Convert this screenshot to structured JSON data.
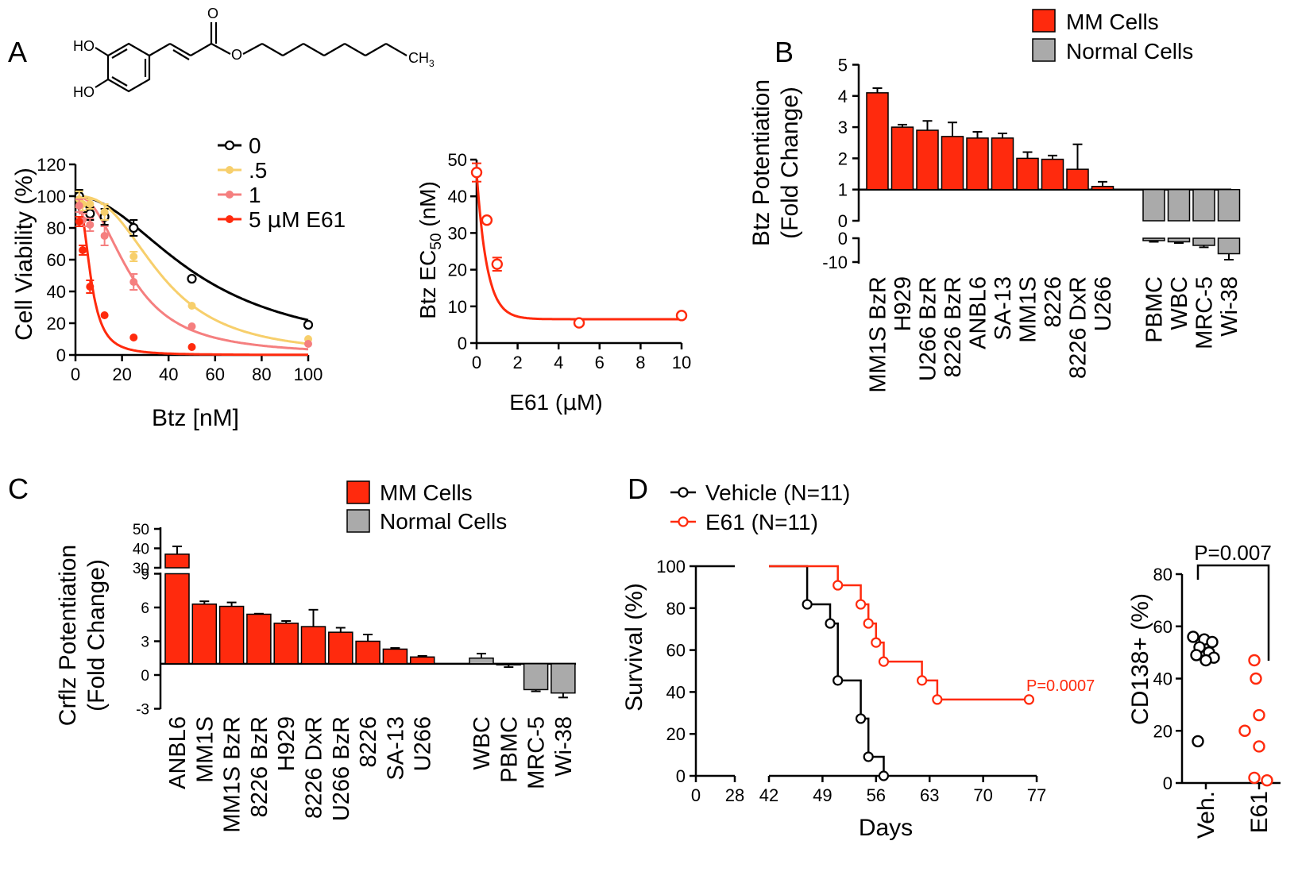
{
  "panel_letters": {
    "a": "A",
    "b": "B",
    "c": "C",
    "d": "D"
  },
  "colors": {
    "mm": "#ff2a0d",
    "normal": "#aaaaaa",
    "black": "#000000",
    "e0": "#000000",
    "e05": "#f7cf6c",
    "e1": "#f57f7f",
    "e5": "#ff2a0d"
  },
  "molecule": {
    "ho_top": "HO",
    "ho_bottom": "HO",
    "o_carbonyl": "O",
    "o_ester": "O",
    "ch3": "CH",
    "ch3_sub": "3"
  },
  "chart_data": [
    {
      "id": "A1",
      "type": "line",
      "xlabel": "Btz [nM]",
      "ylabel": "Cell Viability (%)",
      "xlim": [
        0,
        100
      ],
      "ylim": [
        0,
        120
      ],
      "xticks": [
        0,
        20,
        40,
        60,
        80,
        100
      ],
      "yticks": [
        0,
        20,
        40,
        60,
        80,
        100,
        120
      ],
      "legend_position": "top-right",
      "series": [
        {
          "name": "0",
          "label": "0",
          "color": "#000000",
          "marker": "open-circle",
          "ec50": 53,
          "hill": 2.0,
          "x": [
            1.6,
            3.1,
            6.25,
            12.5,
            25,
            50,
            100
          ],
          "y": [
            100,
            92,
            89,
            87,
            80,
            48,
            19
          ],
          "err": [
            4,
            3,
            4,
            5,
            5,
            0,
            0
          ]
        },
        {
          "name": ".5",
          "label": ".5",
          "color": "#f7cf6c",
          "marker": "filled-circle",
          "ec50": 37,
          "hill": 2.6,
          "x": [
            1.6,
            3.1,
            6.25,
            12.5,
            25,
            50,
            100
          ],
          "y": [
            98,
            95,
            95,
            90,
            62,
            31,
            10
          ],
          "err": [
            5,
            4,
            3,
            5,
            3,
            0,
            0
          ]
        },
        {
          "name": "1",
          "label": "1",
          "color": "#f57f7f",
          "marker": "filled-circle",
          "ec50": 24,
          "hill": 2.3,
          "x": [
            1.6,
            3.1,
            6.25,
            12.5,
            25,
            50,
            100
          ],
          "y": [
            94,
            85,
            82,
            75,
            46,
            18,
            7
          ],
          "err": [
            4,
            4,
            4,
            6,
            5,
            0,
            0
          ]
        },
        {
          "name": "5 µM E61",
          "label_prefix": "5 ",
          "label_mu": "µ",
          "label_suffix": "M E61",
          "color": "#ff2a0d",
          "marker": "filled-circle",
          "ec50": 6.5,
          "hill": 2.6,
          "x": [
            1.6,
            3.1,
            6.25,
            12.5,
            25,
            50
          ],
          "y": [
            84,
            66,
            43,
            25,
            11,
            5
          ],
          "err": [
            3,
            3,
            4,
            0,
            0,
            0
          ]
        }
      ]
    },
    {
      "id": "A2",
      "type": "line",
      "xlabel_prefix": "E61 (",
      "xlabel_mu": "µ",
      "xlabel_suffix": "M)",
      "ylabel_prefix": "Btz EC",
      "ylabel_sub": "50",
      "ylabel_suffix": " (nM)",
      "xlim": [
        0,
        10
      ],
      "ylim": [
        0,
        50
      ],
      "xticks": [
        0,
        2,
        4,
        6,
        8,
        10
      ],
      "yticks": [
        0,
        10,
        20,
        30,
        40,
        50
      ],
      "series": [
        {
          "name": "Btz EC50",
          "color": "#ff2a0d",
          "marker": "open-circle",
          "x": [
            0,
            0.5,
            1,
            5,
            10
          ],
          "y": [
            46.5,
            33.5,
            21.5,
            5.5,
            7.5
          ],
          "err": [
            2.5,
            0,
            1.8,
            0,
            0
          ],
          "fit": {
            "bottom": 6.5,
            "top": 46.5,
            "k": 2.0
          }
        }
      ]
    },
    {
      "id": "B",
      "type": "bar",
      "ylabel_line1": "Btz Potentiation",
      "ylabel_line2": "(Fold Change)",
      "baseline": 1,
      "yticks_top": [
        "5",
        "4",
        "3",
        "2",
        "1",
        "0"
      ],
      "yticks_bottom": [
        "0",
        "-10"
      ],
      "legend": [
        {
          "label": "MM Cells",
          "color": "#ff2a0d"
        },
        {
          "label": "Normal Cells",
          "color": "#aaaaaa"
        }
      ],
      "categories": [
        "MM1S BzR",
        "H929",
        "U266 BzR",
        "8226 BzR",
        "ANBL6",
        "SA-13",
        "MM1S",
        "8226",
        "8226 DxR",
        "U266",
        "PBMC",
        "WBC",
        "MRC-5",
        "Wi-38"
      ],
      "groups": [
        "MM",
        "MM",
        "MM",
        "MM",
        "MM",
        "MM",
        "MM",
        "MM",
        "MM",
        "MM",
        "Normal",
        "Normal",
        "Normal",
        "Normal"
      ],
      "values": [
        4.1,
        3.0,
        2.9,
        2.7,
        2.65,
        2.65,
        2.0,
        1.97,
        1.65,
        1.1,
        -1.0,
        -1.5,
        -3.0,
        -6.5
      ],
      "errors": [
        0.15,
        0.08,
        0.3,
        0.45,
        0.2,
        0.15,
        0.2,
        0.12,
        0.8,
        0.15,
        0.5,
        0.5,
        0.8,
        2.5
      ]
    },
    {
      "id": "C",
      "type": "bar",
      "ylabel_line1": "Crflz Potentiation",
      "ylabel_line2": "(Fold Change)",
      "baseline": 1,
      "yticks_top": [
        "50",
        "40",
        "30"
      ],
      "yticks_bottom": [
        "9",
        "6",
        "3",
        "0",
        "-3"
      ],
      "legend": [
        {
          "label": "MM Cells",
          "color": "#ff2a0d"
        },
        {
          "label": "Normal Cells",
          "color": "#aaaaaa"
        }
      ],
      "categories": [
        "ANBL6",
        "MM1S",
        "MM1S BzR",
        "8226 BzR",
        "H929",
        "8226 DxR",
        "U266 BzR",
        "8226",
        "SA-13",
        "U266",
        "WBC",
        "PBMC",
        "MRC-5",
        "Wi-38"
      ],
      "groups": [
        "MM",
        "MM",
        "MM",
        "MM",
        "MM",
        "MM",
        "MM",
        "MM",
        "MM",
        "MM",
        "Normal",
        "Normal",
        "Normal",
        "Normal"
      ],
      "values": [
        37,
        6.3,
        6.1,
        5.4,
        4.6,
        4.3,
        3.8,
        3.0,
        2.3,
        1.6,
        1.5,
        0.9,
        -1.3,
        -1.6
      ],
      "errors": [
        4,
        0.25,
        0.35,
        0.05,
        0.2,
        1.5,
        0.4,
        0.6,
        0.1,
        0.1,
        0.4,
        0.2,
        0.15,
        0.4
      ]
    },
    {
      "id": "D1",
      "type": "line",
      "xlabel": "Days",
      "ylabel": "Survival (%)",
      "ylim": [
        0,
        100
      ],
      "yticks": [
        0,
        20,
        40,
        60,
        80,
        100
      ],
      "xticks_left": [
        "0",
        "28"
      ],
      "xticks_right": [
        "42",
        "49",
        "56",
        "63",
        "70",
        "77"
      ],
      "annotation": "P=0.0007",
      "series": [
        {
          "name": "Vehicle (N=11)",
          "color": "#000000",
          "steps_x": [
            47,
            50,
            51,
            54,
            55,
            57
          ],
          "steps_y": [
            81.8,
            72.7,
            45.5,
            27.3,
            9.1,
            0
          ]
        },
        {
          "name": "E61 (N=11)",
          "color": "#ff2a0d",
          "steps_x": [
            51,
            54,
            55,
            56,
            57,
            62,
            64,
            76
          ],
          "steps_y": [
            90.9,
            81.8,
            72.7,
            63.6,
            54.5,
            45.5,
            36.4,
            36.4
          ]
        }
      ]
    },
    {
      "id": "D2",
      "type": "scatter",
      "ylabel": "CD138+ (%)",
      "ylim": [
        0,
        80
      ],
      "yticks": [
        0,
        20,
        40,
        60,
        80
      ],
      "categories": [
        "Veh.",
        "E61"
      ],
      "annotation": "P=0.007",
      "series": [
        {
          "name": "Veh.",
          "color": "#000000",
          "values": [
            56,
            55,
            54,
            52,
            50,
            49,
            48,
            47,
            16
          ]
        },
        {
          "name": "E61",
          "color": "#ff2a0d",
          "values": [
            47,
            40,
            26,
            20,
            14,
            2,
            1
          ]
        }
      ]
    }
  ]
}
